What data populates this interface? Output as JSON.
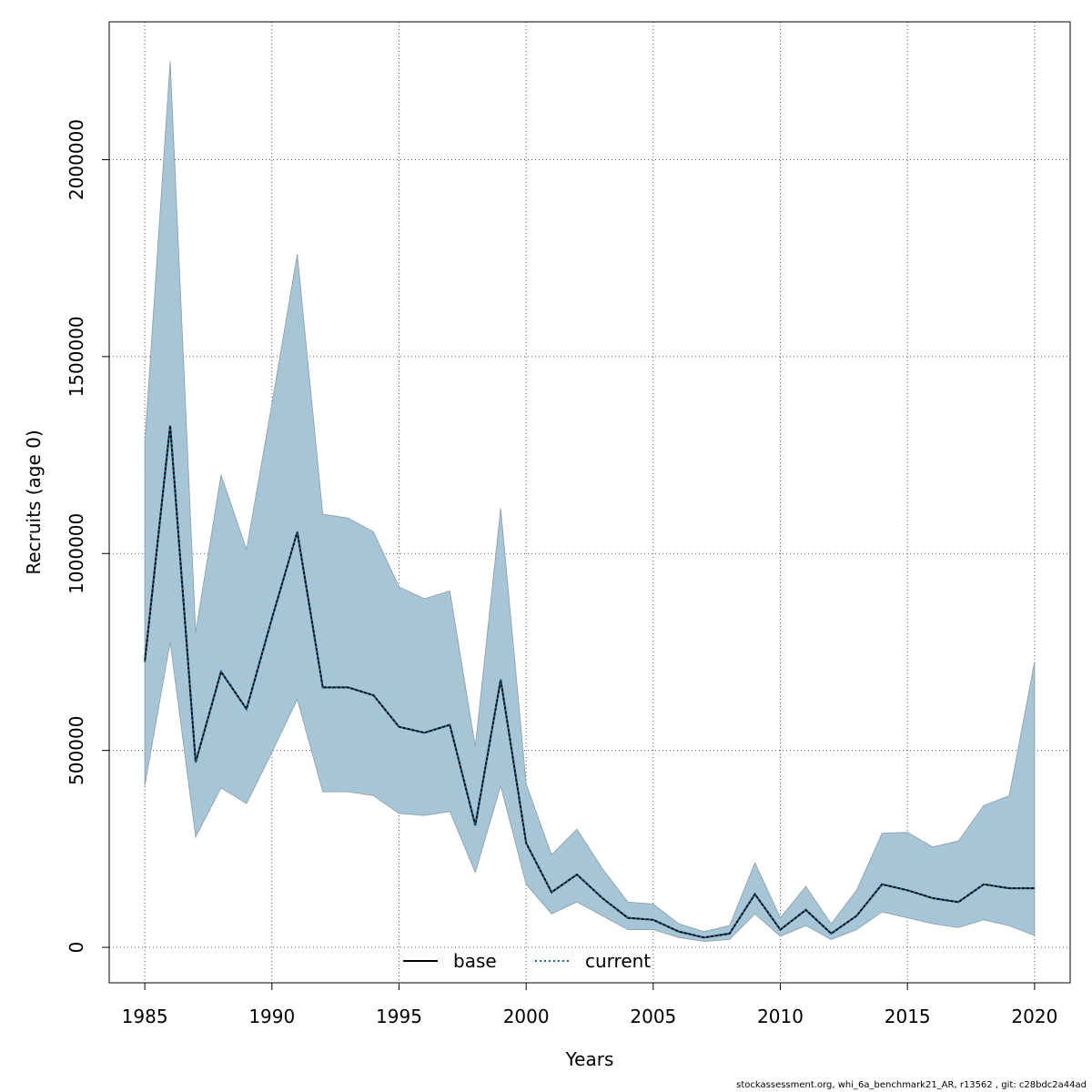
{
  "chart_data": {
    "type": "area",
    "title": "",
    "xlabel": "Years",
    "ylabel": "Recruits (age 0)",
    "xlim": [
      1983.6,
      2021.4
    ],
    "ylim": [
      -90000,
      2350000
    ],
    "x_ticks": [
      1985,
      1990,
      1995,
      2000,
      2005,
      2010,
      2015,
      2020
    ],
    "x_tick_labels": [
      "1985",
      "1990",
      "1995",
      "2000",
      "2005",
      "2010",
      "2015",
      "2020"
    ],
    "y_ticks": [
      0,
      500000,
      1000000,
      1500000,
      2000000
    ],
    "y_tick_labels": [
      "0",
      "500000",
      "1000000",
      "1500000",
      "2000000"
    ],
    "grid": true,
    "legend_position": "bottom-center",
    "band_color": "#a6c5d7",
    "years": [
      1985,
      1986,
      1987,
      1988,
      1989,
      1990,
      1991,
      1992,
      1993,
      1994,
      1995,
      1996,
      1997,
      1998,
      1999,
      2000,
      2001,
      2002,
      2003,
      2004,
      2005,
      2006,
      2007,
      2008,
      2009,
      2010,
      2011,
      2012,
      2013,
      2014,
      2015,
      2016,
      2017,
      2018,
      2019,
      2020
    ],
    "upper": [
      1280000,
      2250000,
      800000,
      1200000,
      1010000,
      1380000,
      1760000,
      1100000,
      1090000,
      1055000,
      915000,
      885000,
      905000,
      510000,
      1115000,
      415000,
      235000,
      300000,
      200000,
      115000,
      110000,
      60000,
      40000,
      55000,
      215000,
      75000,
      155000,
      60000,
      145000,
      290000,
      292000,
      255000,
      270000,
      360000,
      385000,
      725000
    ],
    "lower": [
      410000,
      775000,
      280000,
      405000,
      365000,
      495000,
      630000,
      395000,
      395000,
      385000,
      340000,
      335000,
      345000,
      190000,
      410000,
      160000,
      85000,
      115000,
      80000,
      45000,
      45000,
      25000,
      15000,
      20000,
      85000,
      28000,
      55000,
      20000,
      45000,
      90000,
      75000,
      60000,
      50000,
      70000,
      55000,
      30000
    ],
    "series": [
      {
        "name": "base",
        "style": "solid",
        "color": "#000000",
        "values": [
          725000,
          1325000,
          470000,
          700000,
          605000,
          835000,
          1055000,
          660000,
          660000,
          640000,
          560000,
          545000,
          565000,
          310000,
          680000,
          265000,
          140000,
          185000,
          125000,
          75000,
          70000,
          40000,
          25000,
          35000,
          135000,
          45000,
          95000,
          35000,
          80000,
          160000,
          145000,
          125000,
          115000,
          160000,
          150000,
          150000
        ]
      },
      {
        "name": "current",
        "style": "dotted",
        "color": "#1a6a9a",
        "values": [
          725000,
          1325000,
          470000,
          700000,
          605000,
          835000,
          1055000,
          660000,
          660000,
          640000,
          560000,
          545000,
          565000,
          310000,
          680000,
          265000,
          140000,
          185000,
          125000,
          75000,
          70000,
          40000,
          25000,
          35000,
          135000,
          45000,
          95000,
          35000,
          80000,
          160000,
          145000,
          125000,
          115000,
          160000,
          150000,
          150000
        ]
      }
    ]
  },
  "legend": {
    "base_label": "base",
    "current_label": "current"
  },
  "footer": {
    "text": "stockassessment.org, whi_6a_benchmark21_AR, r13562 , git: c28bdc2a44ad"
  }
}
